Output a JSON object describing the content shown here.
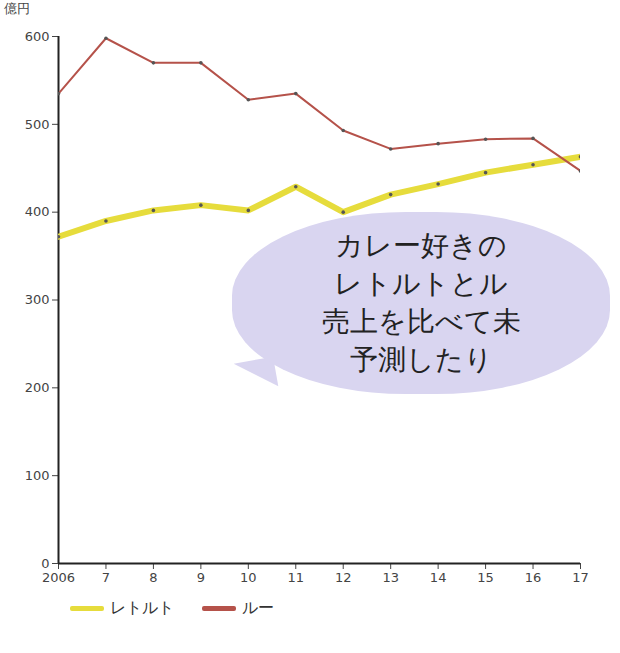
{
  "chart_data": {
    "type": "line",
    "y_label": "億円",
    "x": [
      2006,
      2007,
      2008,
      2009,
      2010,
      2011,
      2012,
      2013,
      2014,
      2015,
      2016,
      2017
    ],
    "series": [
      {
        "name": "レトルト",
        "color": "#e6dc3c",
        "values": [
          372,
          390,
          402,
          408,
          402,
          429,
          400,
          420,
          432,
          445,
          454,
          463
        ]
      },
      {
        "name": "ルー",
        "color": "#b5524a",
        "values": [
          535,
          598,
          570,
          570,
          528,
          535,
          493,
          472,
          478,
          483,
          484,
          447
        ]
      }
    ],
    "xlim": [
      2006,
      2017
    ],
    "xticks": [
      2006,
      {
        "value": 2007,
        "label": "7"
      },
      {
        "value": 2008,
        "label": "8"
      },
      {
        "value": 2009,
        "label": "9"
      },
      {
        "value": 2010,
        "label": "10"
      },
      {
        "value": 2011,
        "label": "11"
      },
      {
        "value": 2012,
        "label": "12"
      },
      {
        "value": 2013,
        "label": "13"
      },
      {
        "value": 2014,
        "label": "14"
      },
      {
        "value": 2015,
        "label": "15"
      },
      {
        "value": 2016,
        "label": "16"
      },
      {
        "value": 2017,
        "label": "17"
      }
    ],
    "ylim": [
      0,
      600
    ],
    "yticks": [
      0,
      100,
      200,
      300,
      400,
      500,
      600
    ],
    "grid": false,
    "legend": "bottom",
    "annotation": [
      "カレー好きの",
      "レトルトとル",
      "売上を比べて未",
      "予測したり"
    ]
  }
}
